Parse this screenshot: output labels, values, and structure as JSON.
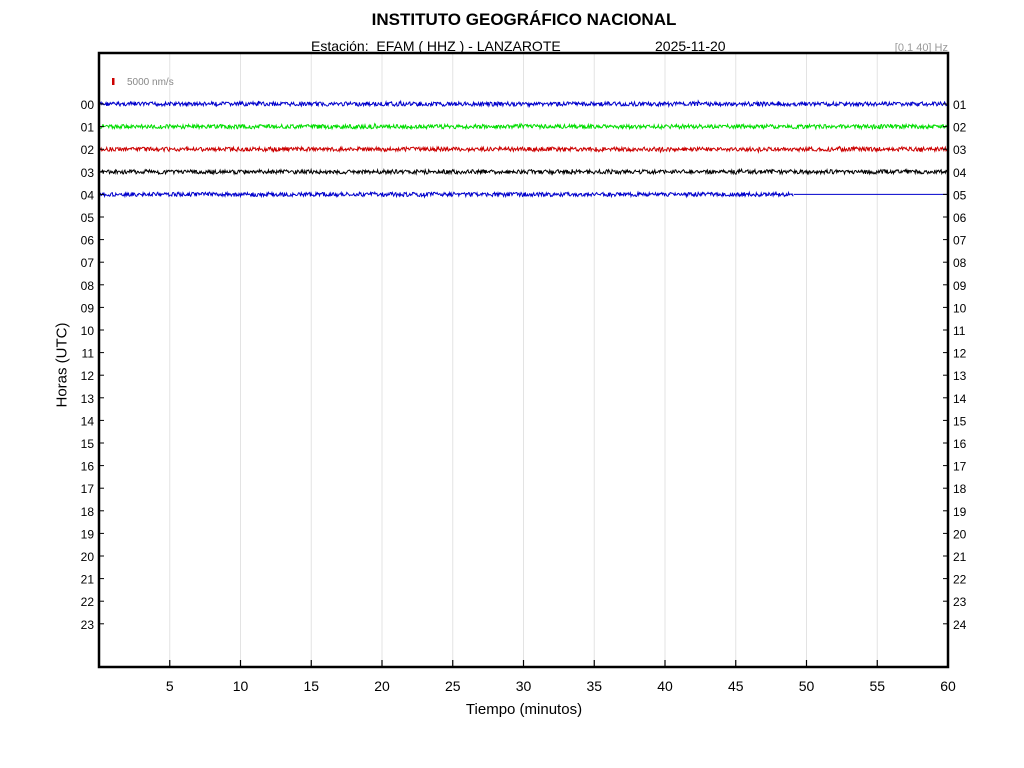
{
  "header": {
    "title": "INSTITUTO GEOGRÁFICO NACIONAL",
    "station": "Estación:  EFAM ( HHZ ) - LANZAROTE",
    "date": "2025-11-20",
    "filter": "[0.1 40] Hz"
  },
  "scale_label": "5000 nm/s",
  "chart_data": {
    "type": "line",
    "title": "INSTITUTO GEOGRÁFICO NACIONAL",
    "xlabel": "Tiempo (minutos)",
    "ylabel": "Horas (UTC)",
    "xlim": [
      0,
      60
    ],
    "x_ticks": [
      "5",
      "10",
      "15",
      "20",
      "25",
      "30",
      "35",
      "40",
      "45",
      "50",
      "55",
      "60"
    ],
    "left_labels": [
      "00",
      "01",
      "02",
      "03",
      "04",
      "05",
      "06",
      "07",
      "08",
      "09",
      "10",
      "11",
      "12",
      "13",
      "14",
      "15",
      "16",
      "17",
      "18",
      "19",
      "20",
      "21",
      "22",
      "23"
    ],
    "right_labels": [
      "01",
      "02",
      "03",
      "04",
      "05",
      "06",
      "07",
      "08",
      "09",
      "10",
      "11",
      "12",
      "13",
      "14",
      "15",
      "16",
      "17",
      "18",
      "19",
      "20",
      "21",
      "22",
      "23",
      "24"
    ],
    "grid": true,
    "series": [
      {
        "hour": 0,
        "start_min": 0,
        "end_min": 60,
        "color": "#0000cc"
      },
      {
        "hour": 1,
        "start_min": 0,
        "end_min": 60,
        "color": "#00dd00"
      },
      {
        "hour": 2,
        "start_min": 0,
        "end_min": 60,
        "color": "#cc0000"
      },
      {
        "hour": 3,
        "start_min": 0,
        "end_min": 60,
        "color": "#000000"
      },
      {
        "hour": 4,
        "start_min": 0,
        "end_min": 49.1,
        "color": "#0000cc"
      }
    ]
  }
}
